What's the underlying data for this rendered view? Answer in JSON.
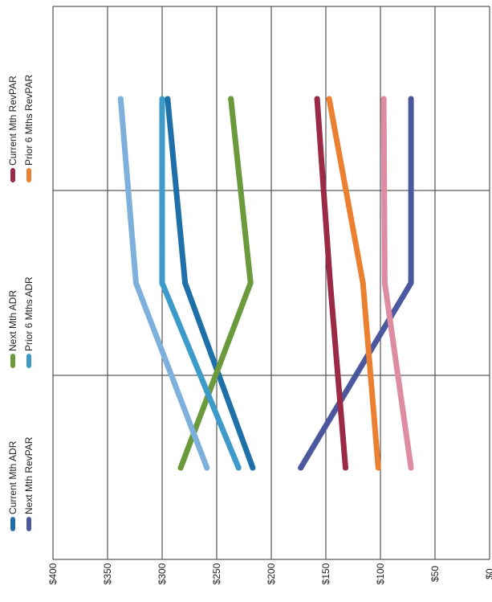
{
  "chart_data": {
    "type": "line",
    "orientation": "rotated-90",
    "categories": [
      "1",
      "2",
      "3"
    ],
    "category_labels_shown": false,
    "y_ticks": [
      "$400",
      "$350",
      "$300",
      "$250",
      "$200",
      "$150",
      "$100",
      "$50",
      "$0"
    ],
    "ylim": [
      0,
      400
    ],
    "grid": true,
    "legend_placement": "left",
    "series": [
      {
        "name": "Current Mth ADR",
        "color": "#1f6fa8",
        "values": [
          217,
          279,
          295
        ]
      },
      {
        "name": "Next Mth ADR",
        "color": "#6a9a3c",
        "values": [
          283,
          219,
          237
        ]
      },
      {
        "name": "Prior 6 Mths ADR",
        "color": "#3e9ac8",
        "values": [
          230,
          300,
          300
        ]
      },
      {
        "name": "Next Mth RevPAR",
        "color": "#4b58a0",
        "values": [
          173,
          72,
          72
        ]
      },
      {
        "name": "Current Mth RevPAR",
        "color": "#9a2a45",
        "values": [
          132,
          146,
          158
        ]
      },
      {
        "name": "Prior 6 Mths RevPAR",
        "color": "#ea8030",
        "values": [
          102,
          116,
          147
        ]
      },
      {
        "name": "",
        "color": "#7db0dc",
        "values": [
          259,
          324,
          338
        ]
      },
      {
        "name": "",
        "color": "#de8ca1",
        "values": [
          72,
          96,
          97
        ]
      }
    ]
  }
}
